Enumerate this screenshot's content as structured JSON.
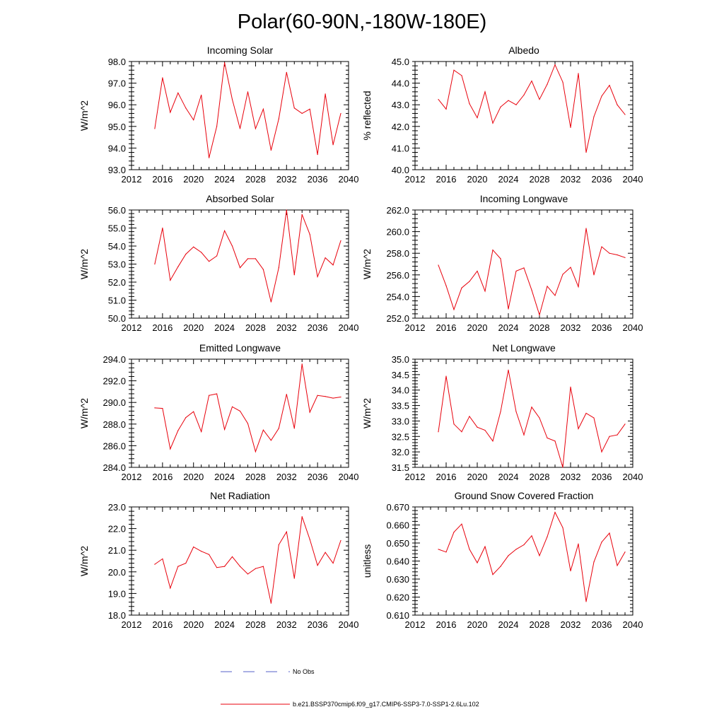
{
  "figure_title": "Polar(60-90N,-180W-180E)",
  "colors": {
    "series": "#e8000b",
    "obs": "#5560c8",
    "axis": "#000000"
  },
  "legend": {
    "obs_label": "No Obs",
    "model_label": "b.e21.BSSP370cmip6.f09_g17.CMIP6-SSP3-7.0-SSP1-2.6Lu.102"
  },
  "chart_data": [
    {
      "type": "line",
      "title": "Incoming Solar",
      "ylabel": "W/m^2",
      "x": [
        2015,
        2016,
        2017,
        2018,
        2019,
        2020,
        2021,
        2022,
        2023,
        2024,
        2025,
        2026,
        2027,
        2028,
        2029,
        2030,
        2031,
        2032,
        2033,
        2034,
        2035,
        2036,
        2037,
        2038,
        2039
      ],
      "values": [
        94.9,
        97.25,
        95.65,
        96.55,
        95.85,
        95.3,
        96.45,
        93.55,
        95.0,
        97.95,
        96.25,
        94.9,
        96.6,
        94.9,
        95.8,
        93.9,
        95.35,
        97.5,
        95.85,
        95.6,
        95.8,
        93.7,
        96.5,
        94.15,
        95.6
      ],
      "xlim": [
        2012,
        2040
      ],
      "ylim": [
        93.0,
        98.0
      ],
      "xticks": [
        "2012",
        "2016",
        "2020",
        "2024",
        "2028",
        "2032",
        "2036",
        "2040"
      ],
      "yticks": [
        "93.0",
        "94.0",
        "95.0",
        "96.0",
        "97.0",
        "98.0"
      ]
    },
    {
      "type": "line",
      "title": "Albedo",
      "ylabel": "% reflected",
      "x": [
        2015,
        2016,
        2017,
        2018,
        2019,
        2020,
        2021,
        2022,
        2023,
        2024,
        2025,
        2026,
        2027,
        2028,
        2029,
        2030,
        2031,
        2032,
        2033,
        2034,
        2035,
        2036,
        2037,
        2038,
        2039
      ],
      "values": [
        43.25,
        42.8,
        44.6,
        44.35,
        43.05,
        42.4,
        43.6,
        42.15,
        42.9,
        43.2,
        43.0,
        43.45,
        44.1,
        43.25,
        43.95,
        44.85,
        44.05,
        41.95,
        44.45,
        40.8,
        42.45,
        43.4,
        43.9,
        43.0,
        42.55
      ],
      "xlim": [
        2012,
        2040
      ],
      "ylim": [
        40.0,
        45.0
      ],
      "xticks": [
        "2012",
        "2016",
        "2020",
        "2024",
        "2028",
        "2032",
        "2036",
        "2040"
      ],
      "yticks": [
        "40.0",
        "41.0",
        "42.0",
        "43.0",
        "44.0",
        "45.0"
      ]
    },
    {
      "type": "line",
      "title": "Absorbed Solar",
      "ylabel": "W/m^2",
      "x": [
        2015,
        2016,
        2017,
        2018,
        2019,
        2020,
        2021,
        2022,
        2023,
        2024,
        2025,
        2026,
        2027,
        2028,
        2029,
        2030,
        2031,
        2032,
        2033,
        2034,
        2035,
        2036,
        2037,
        2038,
        2039
      ],
      "values": [
        53.0,
        55.0,
        52.1,
        52.85,
        53.55,
        53.95,
        53.65,
        53.15,
        53.45,
        54.85,
        54.0,
        52.8,
        53.3,
        53.3,
        52.7,
        50.9,
        52.8,
        56.0,
        52.4,
        55.75,
        54.65,
        52.3,
        53.35,
        52.95,
        54.3
      ],
      "xlim": [
        2012,
        2040
      ],
      "ylim": [
        50.0,
        56.0
      ],
      "xticks": [
        "2012",
        "2016",
        "2020",
        "2024",
        "2028",
        "2032",
        "2036",
        "2040"
      ],
      "yticks": [
        "50.0",
        "51.0",
        "52.0",
        "53.0",
        "54.0",
        "55.0",
        "56.0"
      ]
    },
    {
      "type": "line",
      "title": "Incoming Longwave",
      "ylabel": "W/m^2",
      "x": [
        2015,
        2016,
        2017,
        2018,
        2019,
        2020,
        2021,
        2022,
        2023,
        2024,
        2025,
        2026,
        2027,
        2028,
        2029,
        2030,
        2031,
        2032,
        2033,
        2034,
        2035,
        2036,
        2037,
        2038,
        2039
      ],
      "values": [
        256.9,
        255.0,
        252.8,
        254.8,
        255.4,
        256.35,
        254.5,
        258.3,
        257.5,
        252.85,
        256.35,
        256.65,
        254.6,
        252.3,
        254.95,
        254.1,
        256.05,
        256.7,
        254.9,
        260.3,
        256.0,
        258.6,
        258.0,
        257.85,
        257.6
      ],
      "xlim": [
        2012,
        2040
      ],
      "ylim": [
        252.0,
        262.0
      ],
      "xticks": [
        "2012",
        "2016",
        "2020",
        "2024",
        "2028",
        "2032",
        "2036",
        "2040"
      ],
      "yticks": [
        "252.0",
        "254.0",
        "256.0",
        "258.0",
        "260.0",
        "262.0"
      ]
    },
    {
      "type": "line",
      "title": "Emitted Longwave",
      "ylabel": "W/m^2",
      "x": [
        2015,
        2016,
        2017,
        2018,
        2019,
        2020,
        2021,
        2022,
        2023,
        2024,
        2025,
        2026,
        2027,
        2028,
        2029,
        2030,
        2031,
        2032,
        2033,
        2034,
        2035,
        2036,
        2037,
        2038,
        2039
      ],
      "values": [
        289.5,
        289.45,
        285.7,
        287.4,
        288.6,
        289.15,
        287.3,
        290.65,
        290.8,
        287.5,
        289.6,
        289.2,
        288.05,
        285.45,
        287.45,
        286.5,
        287.6,
        290.75,
        287.6,
        293.55,
        289.1,
        290.65,
        290.55,
        290.4,
        290.5
      ],
      "xlim": [
        2012,
        2040
      ],
      "ylim": [
        284.0,
        294.0
      ],
      "xticks": [
        "2012",
        "2016",
        "2020",
        "2024",
        "2028",
        "2032",
        "2036",
        "2040"
      ],
      "yticks": [
        "284.0",
        "286.0",
        "288.0",
        "290.0",
        "292.0",
        "294.0"
      ]
    },
    {
      "type": "line",
      "title": "Net Longwave",
      "ylabel": "W/m^2",
      "x": [
        2015,
        2016,
        2017,
        2018,
        2019,
        2020,
        2021,
        2022,
        2023,
        2024,
        2025,
        2026,
        2027,
        2028,
        2029,
        2030,
        2031,
        2032,
        2033,
        2034,
        2035,
        2036,
        2037,
        2038,
        2039
      ],
      "values": [
        32.65,
        34.45,
        32.9,
        32.65,
        33.15,
        32.8,
        32.7,
        32.35,
        33.3,
        34.65,
        33.3,
        32.55,
        33.45,
        33.1,
        32.45,
        32.35,
        31.5,
        34.1,
        32.75,
        33.25,
        33.1,
        32.0,
        32.5,
        32.55,
        32.9
      ],
      "xlim": [
        2012,
        2040
      ],
      "ylim": [
        31.5,
        35.0
      ],
      "xticks": [
        "2012",
        "2016",
        "2020",
        "2024",
        "2028",
        "2032",
        "2036",
        "2040"
      ],
      "yticks": [
        "31.5",
        "32.0",
        "32.5",
        "33.0",
        "33.5",
        "34.0",
        "34.5",
        "35.0"
      ]
    },
    {
      "type": "line",
      "title": "Net Radiation",
      "ylabel": "W/m^2",
      "x": [
        2015,
        2016,
        2017,
        2018,
        2019,
        2020,
        2021,
        2022,
        2023,
        2024,
        2025,
        2026,
        2027,
        2028,
        2029,
        2030,
        2031,
        2032,
        2033,
        2034,
        2035,
        2036,
        2037,
        2038,
        2039
      ],
      "values": [
        20.35,
        20.6,
        19.25,
        20.25,
        20.4,
        21.15,
        20.95,
        20.8,
        20.2,
        20.25,
        20.7,
        20.25,
        19.9,
        20.15,
        20.25,
        18.55,
        21.25,
        21.85,
        19.7,
        22.55,
        21.5,
        20.3,
        20.9,
        20.4,
        21.45
      ],
      "xlim": [
        2012,
        2040
      ],
      "ylim": [
        18.0,
        23.0
      ],
      "xticks": [
        "2012",
        "2016",
        "2020",
        "2024",
        "2028",
        "2032",
        "2036",
        "2040"
      ],
      "yticks": [
        "18.0",
        "19.0",
        "20.0",
        "21.0",
        "22.0",
        "23.0"
      ]
    },
    {
      "type": "line",
      "title": "Ground Snow Covered Fraction",
      "ylabel": "unitless",
      "x": [
        2015,
        2016,
        2017,
        2018,
        2019,
        2020,
        2021,
        2022,
        2023,
        2024,
        2025,
        2026,
        2027,
        2028,
        2029,
        2030,
        2031,
        2032,
        2033,
        2034,
        2035,
        2036,
        2037,
        2038,
        2039
      ],
      "values": [
        0.6465,
        0.645,
        0.656,
        0.6605,
        0.6465,
        0.639,
        0.648,
        0.6325,
        0.637,
        0.643,
        0.6465,
        0.649,
        0.654,
        0.643,
        0.6535,
        0.667,
        0.6585,
        0.6345,
        0.6495,
        0.6175,
        0.6395,
        0.6505,
        0.6555,
        0.6375,
        0.645
      ],
      "xlim": [
        2012,
        2040
      ],
      "ylim": [
        0.61,
        0.67
      ],
      "xticks": [
        "2012",
        "2016",
        "2020",
        "2024",
        "2028",
        "2032",
        "2036",
        "2040"
      ],
      "yticks": [
        "0.610",
        "0.620",
        "0.630",
        "0.640",
        "0.650",
        "0.660",
        "0.670"
      ]
    }
  ]
}
